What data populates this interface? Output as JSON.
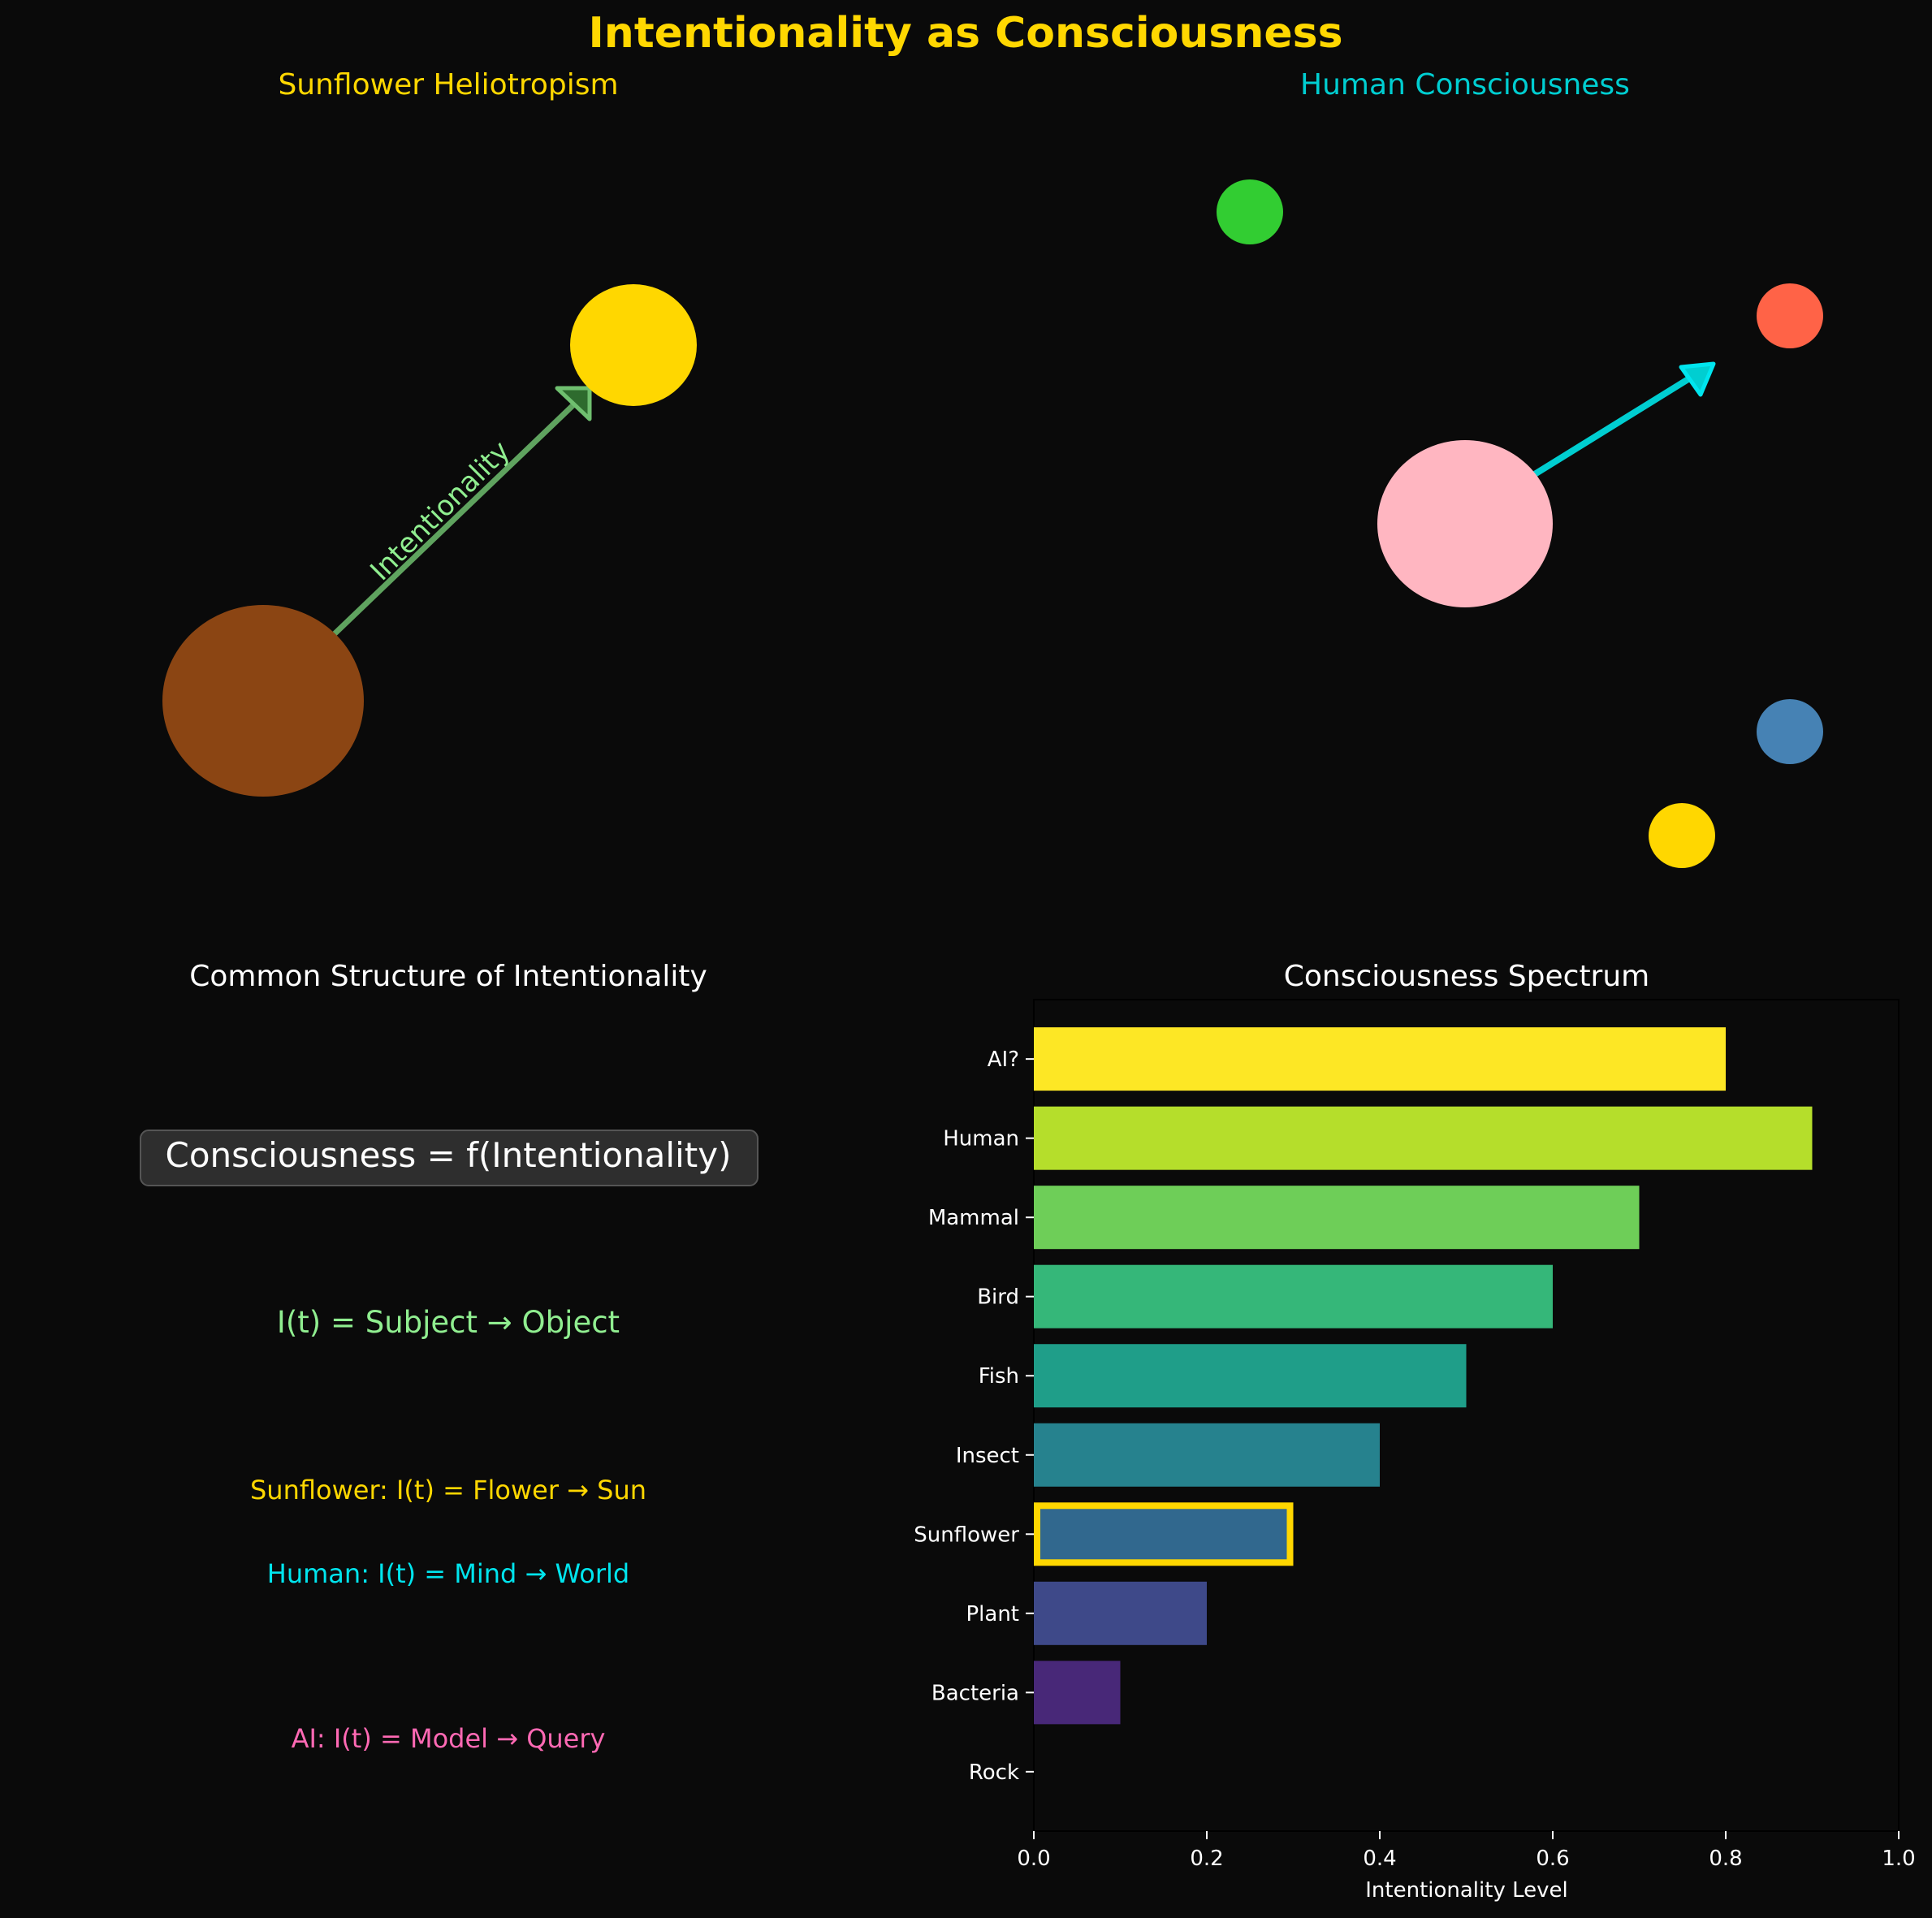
{
  "figure": {
    "title": "Intentionality as Consciousness",
    "title_color": "#FFD700",
    "background": "#0a0a0a"
  },
  "panels": {
    "sunflower": {
      "title": "Sunflower Heliotropism",
      "title_color": "#FFD700",
      "flower_color": "#8B4513",
      "sun_color": "#FFD700",
      "arrow_color": "#5fa35f",
      "arrow_label": "Intentionality",
      "arrow_label_color": "#90EE90"
    },
    "human": {
      "title": "Human Consciousness",
      "title_color": "#00CED1",
      "mind_color": "#FFB6C1",
      "arrow_color": "#00CED1",
      "object_colors": [
        "#32CD32",
        "#FF6347",
        "#4682B4",
        "#FFD700"
      ]
    },
    "structure": {
      "title": "Common Structure of Intentionality",
      "title_color": "#ffffff",
      "main_formula": "Consciousness = f(Intentionality)",
      "general_formula": "I(t) = Subject → Object",
      "general_color": "#90EE90",
      "sunflower_formula": "Sunflower: I(t) = Flower → Sun",
      "sunflower_color": "#FFD700",
      "human_formula": "Human: I(t) = Mind → World",
      "human_color": "#00E5EE",
      "ai_formula": "AI: I(t) = Model → Query",
      "ai_color": "#FF69B4"
    }
  },
  "chart_data": {
    "type": "bar",
    "orientation": "horizontal",
    "title": "Consciousness Spectrum",
    "xlabel": "Intentionality Level",
    "ylabel": "",
    "xlim": [
      0,
      1.0
    ],
    "xticks": [
      "0.0",
      "0.2",
      "0.4",
      "0.6",
      "0.8",
      "1.0"
    ],
    "categories": [
      "Rock",
      "Bacteria",
      "Plant",
      "Sunflower",
      "Insect",
      "Fish",
      "Bird",
      "Mammal",
      "Human",
      "AI?"
    ],
    "values": [
      0.0,
      0.1,
      0.2,
      0.3,
      0.4,
      0.5,
      0.6,
      0.7,
      0.9,
      0.8
    ],
    "colors": [
      "#440154",
      "#482878",
      "#3e4989",
      "#31688e",
      "#26828e",
      "#1f9e89",
      "#35b779",
      "#6ece58",
      "#b5de2b",
      "#fde725"
    ],
    "highlight": {
      "category": "Sunflower",
      "edge_color": "#FFD700"
    },
    "grid": false,
    "legend": "none"
  }
}
